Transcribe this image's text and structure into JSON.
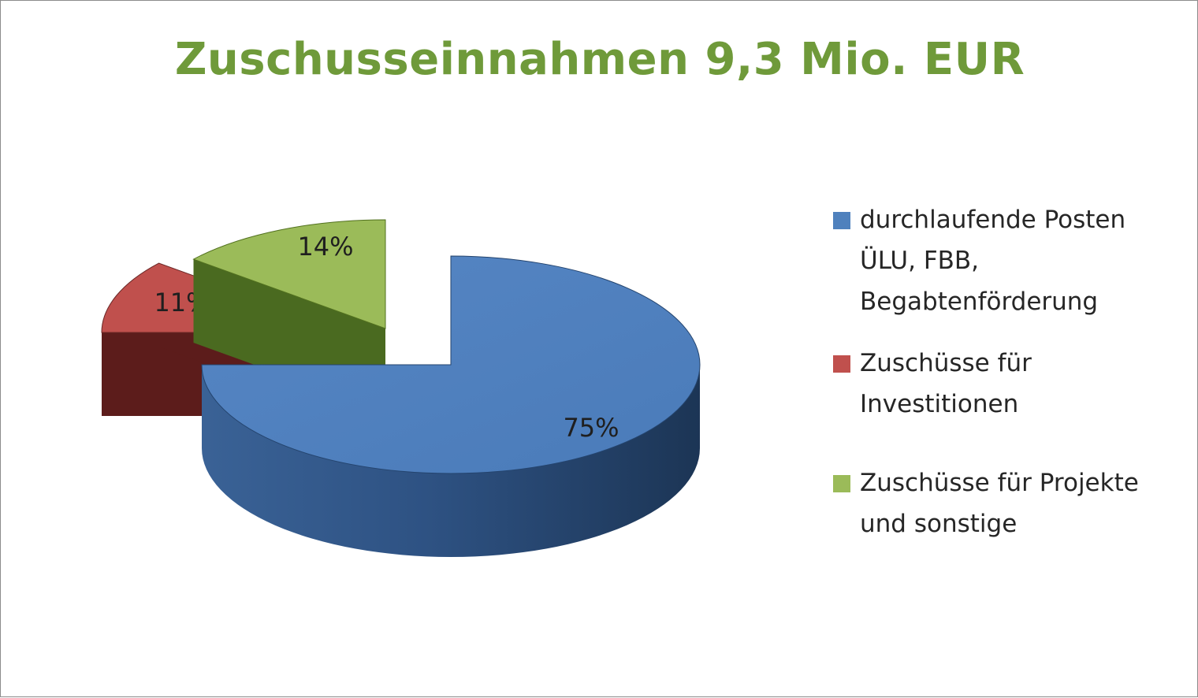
{
  "chart_data": {
    "type": "pie",
    "title": "Zuschusseinnahmen 9,3 Mio. EUR",
    "slices": [
      {
        "label_lines": [
          "durchlaufende Posten",
          "ÜLU, FBB,",
          "Begabtenförderung"
        ],
        "value": 75,
        "value_label": "75%",
        "color": "#4f81bd"
      },
      {
        "label_lines": [
          "Zuschüsse für",
          "Investitionen"
        ],
        "value": 11,
        "value_label": "11%",
        "color": "#c0504d"
      },
      {
        "label_lines": [
          "Zuschüsse für Projekte",
          "und sonstige"
        ],
        "value": 14,
        "value_label": "14%",
        "color": "#9bbb59"
      }
    ],
    "legend_position": "right",
    "style": "3d-exploded"
  }
}
